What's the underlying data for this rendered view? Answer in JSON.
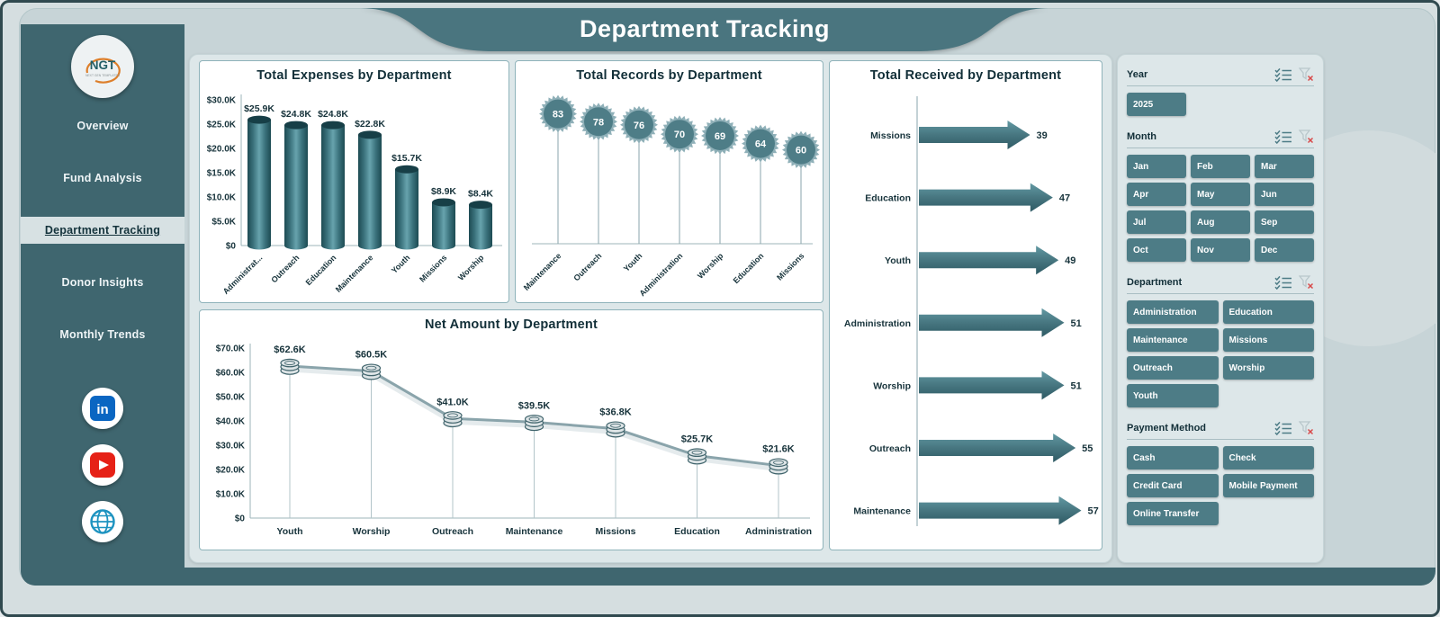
{
  "header": {
    "title": "Department Tracking"
  },
  "sidebar": {
    "logo": {
      "text": "NGT",
      "subtext": "NEXT GEN TEMPLATES"
    },
    "items": [
      {
        "label": "Overview",
        "active": false
      },
      {
        "label": "Fund Analysis",
        "active": false
      },
      {
        "label": "Department Tracking",
        "active": true
      },
      {
        "label": "Donor Insights",
        "active": false
      },
      {
        "label": "Monthly Trends",
        "active": false
      }
    ],
    "social": [
      {
        "name": "LinkedIn"
      },
      {
        "name": "YouTube"
      },
      {
        "name": "Website"
      }
    ]
  },
  "chart_data": [
    {
      "id": "expenses",
      "type": "bar",
      "title": "Total Expenses by Department",
      "categories": [
        "Administrat...",
        "Outreach",
        "Education",
        "Maintenance",
        "Youth",
        "Missions",
        "Worship"
      ],
      "values": [
        25900,
        24800,
        24800,
        22800,
        15700,
        8900,
        8400
      ],
      "value_labels": [
        "$25.9K",
        "$24.8K",
        "$24.8K",
        "$22.8K",
        "$15.7K",
        "$8.9K",
        "$8.4K"
      ],
      "yticks": [
        "$30.0K",
        "$25.0K",
        "$20.0K",
        "$15.0K",
        "$10.0K",
        "$5.0K",
        "$0"
      ],
      "ylim": [
        0,
        30000
      ],
      "xlabel": "",
      "ylabel": "",
      "grid": false,
      "legend": "none"
    },
    {
      "id": "records",
      "type": "lollipop",
      "title": "Total Records by Department",
      "categories": [
        "Maintenance",
        "Outreach",
        "Youth",
        "Administration",
        "Worship",
        "Education",
        "Missions"
      ],
      "values": [
        83,
        78,
        76,
        70,
        69,
        64,
        60
      ],
      "ylim": [
        0,
        90
      ],
      "grid": false,
      "legend": "none"
    },
    {
      "id": "net",
      "type": "line",
      "title": "Net Amount by Department",
      "categories": [
        "Youth",
        "Worship",
        "Outreach",
        "Maintenance",
        "Missions",
        "Education",
        "Administration"
      ],
      "values": [
        62600,
        60500,
        41000,
        39500,
        36800,
        25700,
        21600
      ],
      "value_labels": [
        "$62.6K",
        "$60.5K",
        "$41.0K",
        "$39.5K",
        "$36.8K",
        "$25.7K",
        "$21.6K"
      ],
      "yticks": [
        "$70.0K",
        "$60.0K",
        "$50.0K",
        "$40.0K",
        "$30.0K",
        "$20.0K",
        "$10.0K",
        "$0"
      ],
      "ylim": [
        0,
        70000
      ],
      "grid": false,
      "legend": "none"
    },
    {
      "id": "received",
      "type": "bar",
      "orientation": "horizontal",
      "marker": "arrow",
      "title": "Total Received by Department",
      "categories": [
        "Missions",
        "Education",
        "Youth",
        "Administration",
        "Worship",
        "Outreach",
        "Maintenance"
      ],
      "values": [
        39,
        47,
        49,
        51,
        51,
        55,
        57
      ],
      "xlim": [
        0,
        60
      ],
      "grid": false,
      "legend": "none"
    }
  ],
  "filters": {
    "groups": [
      {
        "id": "year",
        "label": "Year",
        "cols": 3,
        "options": [
          "2025"
        ]
      },
      {
        "id": "month",
        "label": "Month",
        "cols": 3,
        "options": [
          "Jan",
          "Feb",
          "Mar",
          "Apr",
          "May",
          "Jun",
          "Jul",
          "Aug",
          "Sep",
          "Oct",
          "Nov",
          "Dec"
        ]
      },
      {
        "id": "department",
        "label": "Department",
        "cols": 2,
        "options": [
          "Administration",
          "Education",
          "Maintenance",
          "Missions",
          "Outreach",
          "Worship",
          "Youth"
        ]
      },
      {
        "id": "payment-method",
        "label": "Payment Method",
        "cols": 2,
        "options": [
          "Cash",
          "Check",
          "Credit Card",
          "Mobile Payment",
          "Online Transfer"
        ]
      }
    ]
  },
  "colors": {
    "accent": "#4d7c86",
    "sidebar": "#3f666f",
    "banner": "#4a757f",
    "surface": "#c7d4d7",
    "panel": "#dde7e9",
    "card_border": "#8fb3ba",
    "text_dark": "#17333b",
    "linkedin": "#0a66c2",
    "youtube": "#e62117",
    "globe": "#1d93c0",
    "clear_red": "#d84b4b"
  }
}
